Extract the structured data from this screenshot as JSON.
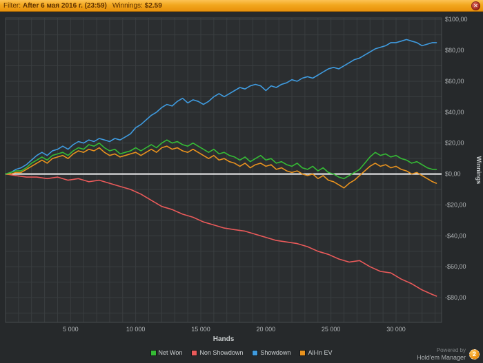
{
  "titlebar": {
    "filter_label": "Filter:",
    "filter_value": "After 6 мая 2016 г. (23:59)",
    "winnings_label": "Winnings:",
    "winnings_value": "$2.59",
    "close_glyph": "✕"
  },
  "legend": [
    {
      "label": "Net Won",
      "color": "#35bb35"
    },
    {
      "label": "Non Showdown",
      "color": "#ea5a5a"
    },
    {
      "label": "Showdown",
      "color": "#3f9bdf"
    },
    {
      "label": "All-In EV",
      "color": "#e8921e"
    }
  ],
  "footer": {
    "powered_by": "Powered by",
    "brand": "Hold'em Manager",
    "logo_glyph": "2"
  },
  "chart_data": {
    "type": "line",
    "title": "",
    "xlabel": "Hands",
    "ylabel": "Winnings",
    "xlim": [
      0,
      33500
    ],
    "ylim": [
      -96,
      101
    ],
    "x_ticks": [
      5000,
      10000,
      15000,
      20000,
      25000,
      30000
    ],
    "x_tick_labels": [
      "5 000",
      "10 000",
      "15 000",
      "20 000",
      "25 000",
      "30 000"
    ],
    "y_ticks": [
      100,
      80,
      60,
      40,
      20,
      0,
      -20,
      -40,
      -60,
      -80
    ],
    "y_tick_labels": [
      "$100,00",
      "$80,00",
      "$60,00",
      "$40,00",
      "$20,00",
      "$0,00",
      "-$20,00",
      "-$40,00",
      "-$60,00",
      "-$80,00"
    ],
    "grid": true,
    "legend_position": "bottom",
    "zero_line_color": "#f5f5f5",
    "series": [
      {
        "name": "Non Showdown",
        "color": "#ea5a5a",
        "points": [
          [
            0,
            0
          ],
          [
            800,
            -1
          ],
          [
            1600,
            -2
          ],
          [
            2400,
            -2
          ],
          [
            3200,
            -3
          ],
          [
            4000,
            -2
          ],
          [
            4800,
            -4
          ],
          [
            5600,
            -3
          ],
          [
            6400,
            -5
          ],
          [
            7200,
            -4
          ],
          [
            8000,
            -6
          ],
          [
            8800,
            -8
          ],
          [
            9600,
            -10
          ],
          [
            10400,
            -13
          ],
          [
            11200,
            -17
          ],
          [
            12000,
            -21
          ],
          [
            12800,
            -23
          ],
          [
            13600,
            -26
          ],
          [
            14400,
            -28
          ],
          [
            15200,
            -31
          ],
          [
            16000,
            -33
          ],
          [
            16800,
            -35
          ],
          [
            17600,
            -36
          ],
          [
            18400,
            -37
          ],
          [
            19200,
            -39
          ],
          [
            20000,
            -41
          ],
          [
            20800,
            -43
          ],
          [
            21600,
            -44
          ],
          [
            22400,
            -45
          ],
          [
            23200,
            -47
          ],
          [
            24000,
            -50
          ],
          [
            24800,
            -52
          ],
          [
            25600,
            -55
          ],
          [
            26400,
            -57
          ],
          [
            27200,
            -56
          ],
          [
            28000,
            -60
          ],
          [
            28800,
            -63
          ],
          [
            29600,
            -64
          ],
          [
            30400,
            -68
          ],
          [
            31200,
            -71
          ],
          [
            32000,
            -75
          ],
          [
            32800,
            -78
          ],
          [
            33100,
            -79
          ]
        ]
      },
      {
        "name": "Showdown",
        "color": "#3f9bdf",
        "points": [
          [
            0,
            0
          ],
          [
            400,
            1
          ],
          [
            800,
            3
          ],
          [
            1200,
            4
          ],
          [
            1600,
            6
          ],
          [
            2000,
            9
          ],
          [
            2400,
            12
          ],
          [
            2800,
            14
          ],
          [
            3200,
            12
          ],
          [
            3600,
            15
          ],
          [
            4000,
            16
          ],
          [
            4400,
            18
          ],
          [
            4800,
            16
          ],
          [
            5200,
            19
          ],
          [
            5600,
            21
          ],
          [
            6000,
            20
          ],
          [
            6400,
            22
          ],
          [
            6800,
            21
          ],
          [
            7200,
            23
          ],
          [
            7600,
            22
          ],
          [
            8000,
            21
          ],
          [
            8400,
            23
          ],
          [
            8800,
            22
          ],
          [
            9200,
            24
          ],
          [
            9600,
            26
          ],
          [
            10000,
            30
          ],
          [
            10400,
            32
          ],
          [
            10800,
            35
          ],
          [
            11200,
            38
          ],
          [
            11600,
            40
          ],
          [
            12000,
            43
          ],
          [
            12400,
            45
          ],
          [
            12800,
            44
          ],
          [
            13200,
            47
          ],
          [
            13600,
            49
          ],
          [
            14000,
            46
          ],
          [
            14400,
            48
          ],
          [
            14800,
            47
          ],
          [
            15200,
            45
          ],
          [
            15600,
            47
          ],
          [
            16000,
            50
          ],
          [
            16400,
            52
          ],
          [
            16800,
            50
          ],
          [
            17200,
            52
          ],
          [
            17600,
            54
          ],
          [
            18000,
            56
          ],
          [
            18400,
            55
          ],
          [
            18800,
            57
          ],
          [
            19200,
            58
          ],
          [
            19600,
            57
          ],
          [
            20000,
            54
          ],
          [
            20400,
            57
          ],
          [
            20800,
            56
          ],
          [
            21200,
            58
          ],
          [
            21600,
            59
          ],
          [
            22000,
            61
          ],
          [
            22400,
            60
          ],
          [
            22800,
            62
          ],
          [
            23200,
            63
          ],
          [
            23600,
            62
          ],
          [
            24000,
            64
          ],
          [
            24400,
            66
          ],
          [
            24800,
            68
          ],
          [
            25200,
            69
          ],
          [
            25600,
            68
          ],
          [
            26000,
            70
          ],
          [
            26400,
            72
          ],
          [
            26800,
            74
          ],
          [
            27200,
            75
          ],
          [
            27600,
            77
          ],
          [
            28000,
            79
          ],
          [
            28400,
            81
          ],
          [
            28800,
            82
          ],
          [
            29200,
            83
          ],
          [
            29600,
            85
          ],
          [
            30000,
            85
          ],
          [
            30400,
            86
          ],
          [
            30800,
            87
          ],
          [
            31200,
            86
          ],
          [
            31600,
            85
          ],
          [
            32000,
            83
          ],
          [
            32400,
            84
          ],
          [
            32800,
            85
          ],
          [
            33100,
            85
          ]
        ]
      },
      {
        "name": "All-In EV",
        "color": "#e8921e",
        "points": [
          [
            0,
            0
          ],
          [
            400,
            0
          ],
          [
            800,
            1
          ],
          [
            1200,
            1
          ],
          [
            1600,
            3
          ],
          [
            2000,
            5
          ],
          [
            2400,
            7
          ],
          [
            2800,
            9
          ],
          [
            3200,
            7
          ],
          [
            3600,
            10
          ],
          [
            4000,
            11
          ],
          [
            4400,
            12
          ],
          [
            4800,
            10
          ],
          [
            5200,
            13
          ],
          [
            5600,
            15
          ],
          [
            6000,
            14
          ],
          [
            6400,
            16
          ],
          [
            6800,
            15
          ],
          [
            7200,
            17
          ],
          [
            7600,
            14
          ],
          [
            8000,
            12
          ],
          [
            8400,
            13
          ],
          [
            8800,
            11
          ],
          [
            9200,
            12
          ],
          [
            9600,
            13
          ],
          [
            10000,
            14
          ],
          [
            10400,
            12
          ],
          [
            10800,
            14
          ],
          [
            11200,
            16
          ],
          [
            11600,
            14
          ],
          [
            12000,
            17
          ],
          [
            12400,
            18
          ],
          [
            12800,
            16
          ],
          [
            13200,
            17
          ],
          [
            13600,
            15
          ],
          [
            14000,
            14
          ],
          [
            14400,
            16
          ],
          [
            14800,
            14
          ],
          [
            15200,
            12
          ],
          [
            15600,
            10
          ],
          [
            16000,
            12
          ],
          [
            16400,
            9
          ],
          [
            16800,
            10
          ],
          [
            17200,
            8
          ],
          [
            17600,
            7
          ],
          [
            18000,
            5
          ],
          [
            18400,
            7
          ],
          [
            18800,
            4
          ],
          [
            19200,
            6
          ],
          [
            19600,
            7
          ],
          [
            20000,
            5
          ],
          [
            20400,
            6
          ],
          [
            20800,
            3
          ],
          [
            21200,
            4
          ],
          [
            21600,
            2
          ],
          [
            22000,
            1
          ],
          [
            22400,
            2
          ],
          [
            22800,
            0
          ],
          [
            23200,
            -1
          ],
          [
            23600,
            0
          ],
          [
            24000,
            -3
          ],
          [
            24400,
            -1
          ],
          [
            24800,
            -4
          ],
          [
            25200,
            -5
          ],
          [
            25600,
            -7
          ],
          [
            26000,
            -9
          ],
          [
            26400,
            -6
          ],
          [
            26800,
            -4
          ],
          [
            27200,
            -1
          ],
          [
            27600,
            2
          ],
          [
            28000,
            5
          ],
          [
            28400,
            7
          ],
          [
            28800,
            5
          ],
          [
            29200,
            6
          ],
          [
            29600,
            4
          ],
          [
            30000,
            5
          ],
          [
            30400,
            3
          ],
          [
            30800,
            2
          ],
          [
            31200,
            0
          ],
          [
            31600,
            1
          ],
          [
            32000,
            -1
          ],
          [
            32400,
            -3
          ],
          [
            32800,
            -5
          ],
          [
            33100,
            -6
          ]
        ]
      },
      {
        "name": "Net Won",
        "color": "#35bb35",
        "points": [
          [
            0,
            0
          ],
          [
            400,
            1
          ],
          [
            800,
            2
          ],
          [
            1200,
            2
          ],
          [
            1600,
            4
          ],
          [
            2000,
            7
          ],
          [
            2400,
            9
          ],
          [
            2800,
            11
          ],
          [
            3200,
            9
          ],
          [
            3600,
            12
          ],
          [
            4000,
            13
          ],
          [
            4400,
            14
          ],
          [
            4800,
            12
          ],
          [
            5200,
            15
          ],
          [
            5600,
            17
          ],
          [
            6000,
            16
          ],
          [
            6400,
            19
          ],
          [
            6800,
            18
          ],
          [
            7200,
            20
          ],
          [
            7600,
            17
          ],
          [
            8000,
            15
          ],
          [
            8400,
            16
          ],
          [
            8800,
            13
          ],
          [
            9200,
            14
          ],
          [
            9600,
            15
          ],
          [
            10000,
            17
          ],
          [
            10400,
            15
          ],
          [
            10800,
            17
          ],
          [
            11200,
            19
          ],
          [
            11600,
            17
          ],
          [
            12000,
            20
          ],
          [
            12400,
            22
          ],
          [
            12800,
            20
          ],
          [
            13200,
            21
          ],
          [
            13600,
            19
          ],
          [
            14000,
            18
          ],
          [
            14400,
            20
          ],
          [
            14800,
            18
          ],
          [
            15200,
            16
          ],
          [
            15600,
            14
          ],
          [
            16000,
            16
          ],
          [
            16400,
            13
          ],
          [
            16800,
            14
          ],
          [
            17200,
            12
          ],
          [
            17600,
            11
          ],
          [
            18000,
            9
          ],
          [
            18400,
            11
          ],
          [
            18800,
            8
          ],
          [
            19200,
            10
          ],
          [
            19600,
            12
          ],
          [
            20000,
            9
          ],
          [
            20400,
            10
          ],
          [
            20800,
            7
          ],
          [
            21200,
            8
          ],
          [
            21600,
            6
          ],
          [
            22000,
            5
          ],
          [
            22400,
            7
          ],
          [
            22800,
            4
          ],
          [
            23200,
            3
          ],
          [
            23600,
            5
          ],
          [
            24000,
            2
          ],
          [
            24400,
            4
          ],
          [
            24800,
            1
          ],
          [
            25200,
            0
          ],
          [
            25600,
            -2
          ],
          [
            26000,
            -3
          ],
          [
            26400,
            -1
          ],
          [
            26800,
            1
          ],
          [
            27200,
            3
          ],
          [
            27600,
            7
          ],
          [
            28000,
            11
          ],
          [
            28400,
            14
          ],
          [
            28800,
            12
          ],
          [
            29200,
            13
          ],
          [
            29600,
            11
          ],
          [
            30000,
            12
          ],
          [
            30400,
            10
          ],
          [
            30800,
            9
          ],
          [
            31200,
            7
          ],
          [
            31600,
            8
          ],
          [
            32000,
            6
          ],
          [
            32400,
            4
          ],
          [
            32800,
            3
          ],
          [
            33100,
            3
          ]
        ]
      }
    ]
  }
}
